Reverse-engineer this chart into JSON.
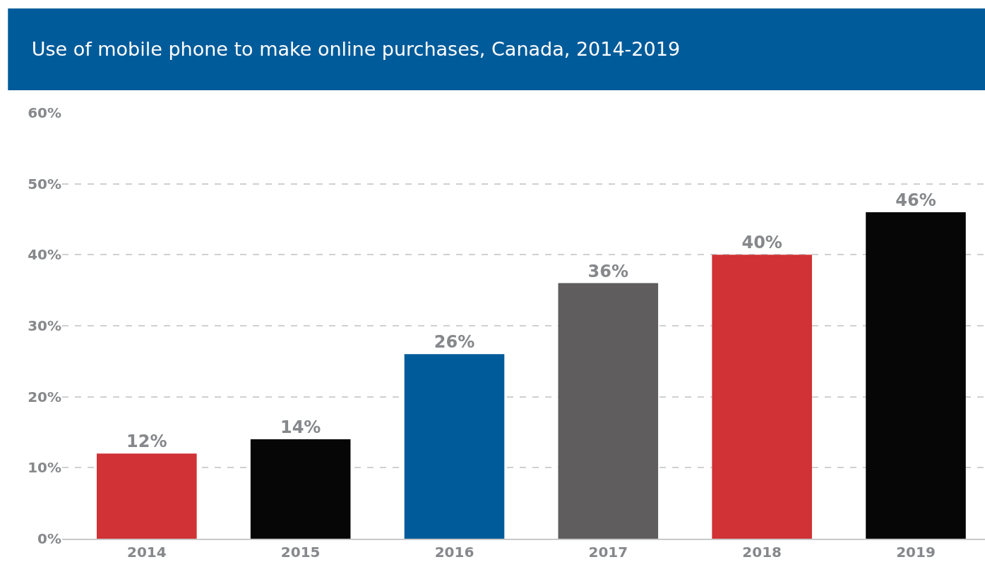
{
  "chart_data": {
    "type": "bar",
    "title": "Use of mobile phone to make online purchases, Canada, 2014-2019",
    "categories": [
      "2014",
      "2015",
      "2016",
      "2017",
      "2018",
      "2019"
    ],
    "values": [
      12,
      14,
      26,
      36,
      40,
      46
    ],
    "colors": [
      "#d03235",
      "#060606",
      "#005b9a",
      "#5f5d5d",
      "#d03235",
      "#060606"
    ],
    "value_labels": [
      "12%",
      "14%",
      "26%",
      "36%",
      "40%",
      "46%"
    ],
    "ylim": [
      0,
      60
    ],
    "yticks": [
      {
        "value": 0,
        "label": "0%"
      },
      {
        "value": 10,
        "label": "10%"
      },
      {
        "value": 20,
        "label": "20%"
      },
      {
        "value": 30,
        "label": "30%"
      },
      {
        "value": 40,
        "label": "40%"
      },
      {
        "value": 50,
        "label": "50%"
      },
      {
        "value": 60,
        "label": "60%"
      }
    ],
    "grid": "y",
    "legend": false
  }
}
